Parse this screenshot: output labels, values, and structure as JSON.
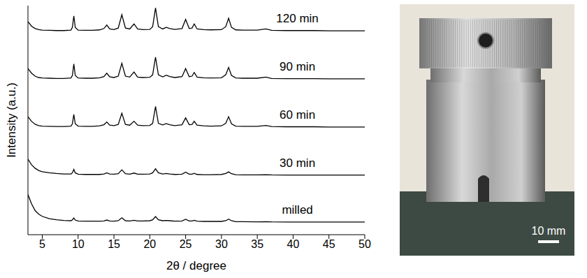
{
  "chart_data": {
    "type": "line",
    "xlabel": "2θ / degree",
    "ylabel": "Intensity (a.u.)",
    "xlim": [
      3,
      50
    ],
    "xticks": [
      5,
      10,
      15,
      20,
      25,
      30,
      35,
      40,
      45,
      50
    ],
    "ylim": [
      0,
      100
    ],
    "tick_labels": "x",
    "grid": false,
    "x": [
      3,
      3.5,
      4,
      4.5,
      5,
      6,
      7,
      8,
      9,
      9.2,
      9.4,
      9.6,
      10,
      11,
      12,
      13,
      13.6,
      14,
      14.4,
      15,
      15.6,
      16.1,
      16.6,
      17.2,
      17.8,
      18.3,
      19,
      20,
      20.4,
      20.8,
      21.2,
      21.8,
      22.3,
      22.8,
      23.5,
      24.5,
      25,
      25.5,
      25.9,
      26.2,
      26.6,
      27.5,
      28.5,
      30,
      30.6,
      31,
      31.4,
      32,
      33,
      35,
      36.2,
      37,
      39,
      41,
      43,
      45,
      47,
      50
    ],
    "series": [
      {
        "name": "120 min",
        "color": "#000000",
        "values": [
          93,
          91,
          90,
          89.5,
          89.3,
          89.2,
          89.1,
          89.1,
          89.3,
          90.5,
          95.5,
          90.5,
          89.3,
          89.2,
          89.2,
          89.4,
          90,
          91.5,
          89.8,
          89.5,
          90.2,
          96,
          90.2,
          89.8,
          92,
          89.8,
          89.5,
          89.6,
          90.8,
          99,
          90.8,
          89.8,
          90.5,
          90,
          89.6,
          90,
          94,
          90,
          90.2,
          92,
          89.8,
          89.5,
          89.4,
          89.5,
          90.8,
          94.5,
          90.5,
          89.4,
          89.3,
          89.3,
          89.8,
          89.2,
          89.1,
          89.1,
          89.1,
          89,
          89,
          89
        ]
      },
      {
        "name": "90 min",
        "color": "#000000",
        "values": [
          72.5,
          70.5,
          69.2,
          68.6,
          68.4,
          68.3,
          68.2,
          68.2,
          68.4,
          69.5,
          74.5,
          69.5,
          68.4,
          68.3,
          68.3,
          68.5,
          69,
          70.5,
          68.9,
          68.6,
          69.2,
          74.8,
          69.2,
          68.8,
          71,
          68.8,
          68.6,
          68.7,
          69.8,
          77.5,
          69.8,
          68.9,
          69.6,
          69,
          68.6,
          69,
          72.5,
          69,
          69.2,
          70.8,
          68.8,
          68.5,
          68.4,
          68.5,
          69.8,
          73,
          69.5,
          68.4,
          68.3,
          68.3,
          68.8,
          68.2,
          68.1,
          68.1,
          68.1,
          68,
          68,
          68
        ]
      },
      {
        "name": "60 min",
        "color": "#000000",
        "values": [
          51.5,
          49.5,
          48.2,
          47.6,
          47.4,
          47.3,
          47.2,
          47.2,
          47.4,
          48.4,
          52.5,
          48.4,
          47.4,
          47.3,
          47.3,
          47.5,
          48,
          49.2,
          47.8,
          47.6,
          48.1,
          53,
          48.1,
          47.8,
          49.5,
          47.8,
          47.6,
          47.7,
          48.6,
          56,
          48.6,
          47.9,
          48.5,
          48,
          47.6,
          48,
          51,
          48,
          48.1,
          49.5,
          47.8,
          47.5,
          47.4,
          47.5,
          48.6,
          51.5,
          48.4,
          47.4,
          47.3,
          47.3,
          47.7,
          47.2,
          47.1,
          47.1,
          47.1,
          47,
          47,
          47
        ]
      },
      {
        "name": "30 min",
        "color": "#000000",
        "values": [
          33,
          30.5,
          29,
          28,
          27.5,
          27,
          26.7,
          26.5,
          26.5,
          27,
          28.5,
          27,
          26.4,
          26.3,
          26.3,
          26.3,
          26.5,
          27,
          26.5,
          26.4,
          26.6,
          28.3,
          26.6,
          26.4,
          26.9,
          26.4,
          26.4,
          26.5,
          27,
          28.8,
          27,
          26.5,
          26.7,
          26.5,
          26.3,
          26.4,
          27.3,
          26.4,
          26.4,
          26.8,
          26.3,
          26.2,
          26.2,
          26.3,
          26.7,
          27.4,
          26.6,
          26.2,
          26.1,
          26.1,
          26.2,
          26.1,
          26,
          26,
          26,
          26,
          26,
          26
        ]
      },
      {
        "name": "milled",
        "color": "#000000",
        "values": [
          17.5,
          13.5,
          10.5,
          9,
          8,
          7,
          6.5,
          6.2,
          6.1,
          6.5,
          7.3,
          6.4,
          6,
          5.9,
          5.9,
          5.9,
          6,
          6.4,
          6,
          5.9,
          6.1,
          7.4,
          6.1,
          6,
          6.3,
          6,
          6,
          6.1,
          6.5,
          7.9,
          6.5,
          6.1,
          6.2,
          6.1,
          5.9,
          6,
          6.7,
          6,
          6,
          6.3,
          5.9,
          5.8,
          5.8,
          5.8,
          6.1,
          6.8,
          6.1,
          5.7,
          5.7,
          5.6,
          5.7,
          5.6,
          5.5,
          5.5,
          5.5,
          5.5,
          5.5,
          5.5
        ]
      }
    ]
  },
  "photo": {
    "scale_bar": "10 mm"
  }
}
